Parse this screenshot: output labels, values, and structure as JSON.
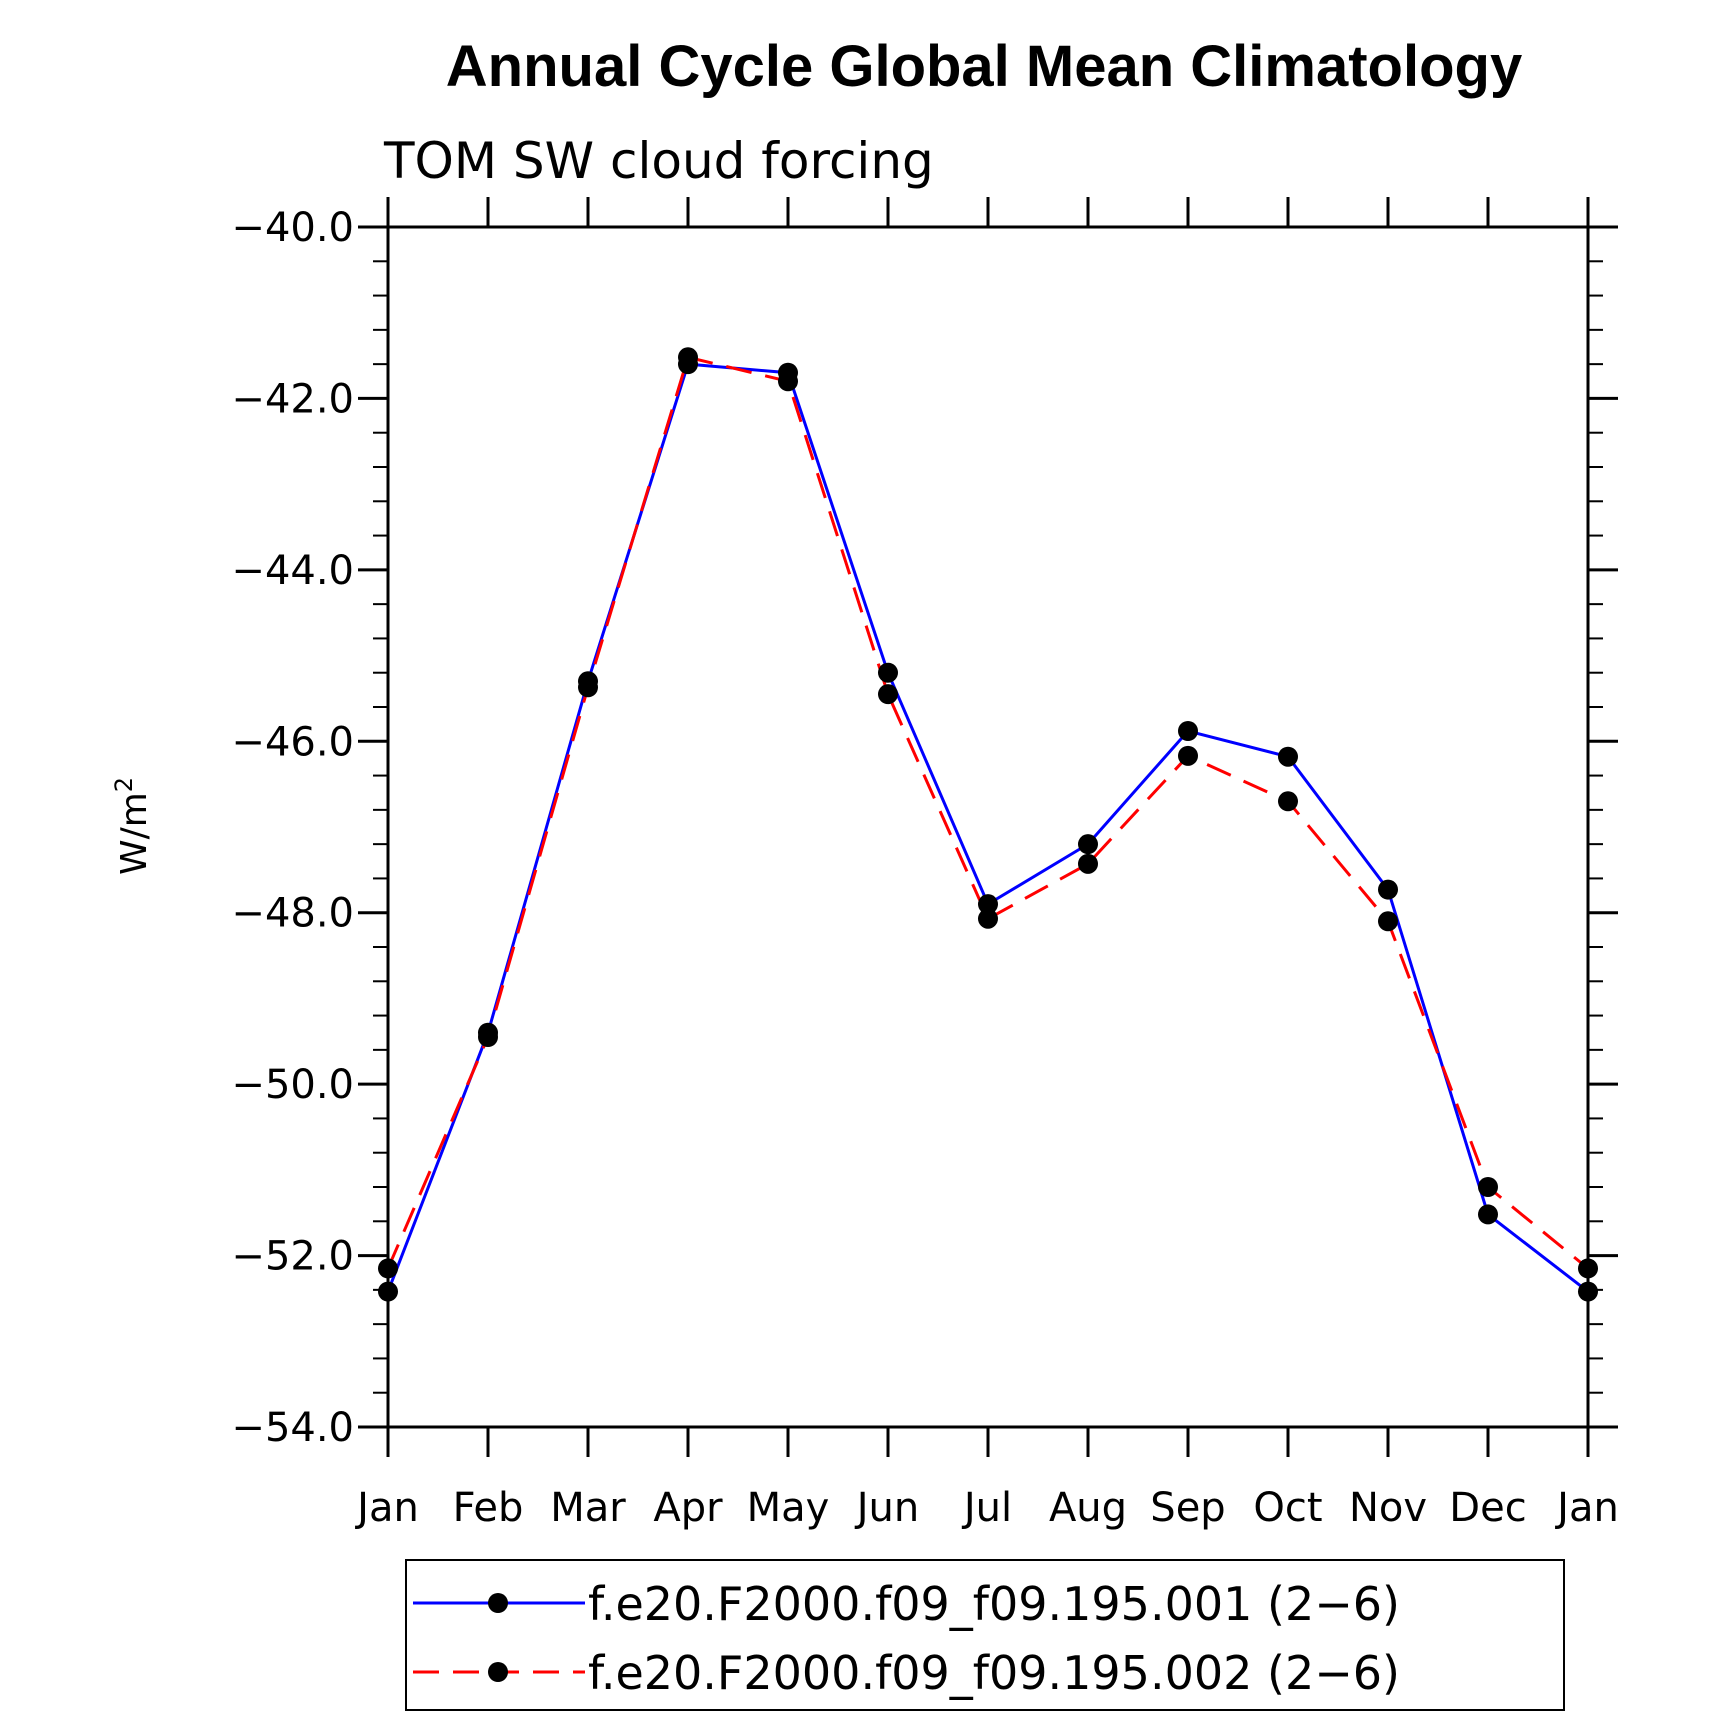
{
  "chart_data": {
    "type": "line",
    "title": "Annual Cycle Global Mean Climatology",
    "subtitle": "TOM SW cloud forcing",
    "ylabel": "W/m",
    "ylabel_superscript": "2",
    "xlabel": "",
    "categories": [
      "Jan",
      "Feb",
      "Mar",
      "Apr",
      "May",
      "Jun",
      "Jul",
      "Aug",
      "Sep",
      "Oct",
      "Nov",
      "Dec",
      "Jan"
    ],
    "ylim": [
      -54.0,
      -40.0
    ],
    "yticks": [
      -40.0,
      -42.0,
      -44.0,
      -46.0,
      -48.0,
      -50.0,
      -52.0,
      -54.0
    ],
    "ytick_labels": [
      "−40.0",
      "−42.0",
      "−44.0",
      "−46.0",
      "−48.0",
      "−50.0",
      "−52.0",
      "−54.0"
    ],
    "grid": false,
    "legend_position": "bottom",
    "series": [
      {
        "name": "f.e20.F2000.f09_f09.195.001 (2−6)",
        "color": "#0000ff",
        "dash": "solid",
        "values": [
          -52.42,
          -49.4,
          -45.3,
          -41.6,
          -41.7,
          -45.2,
          -47.9,
          -47.2,
          -45.88,
          -46.18,
          -47.73,
          -51.52,
          -52.42
        ]
      },
      {
        "name": "f.e20.F2000.f09_f09.195.002 (2−6)",
        "color": "#ff0000",
        "dash": "dashed",
        "values": [
          -52.15,
          -49.45,
          -45.37,
          -41.52,
          -41.8,
          -45.45,
          -48.07,
          -47.43,
          -46.17,
          -46.7,
          -48.1,
          -51.2,
          -52.15
        ]
      }
    ]
  }
}
